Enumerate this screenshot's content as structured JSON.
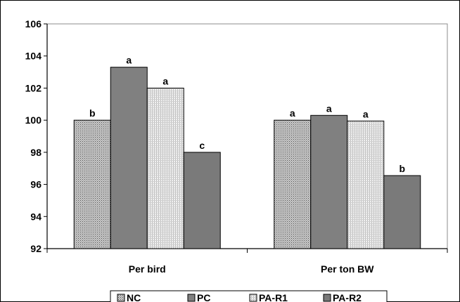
{
  "chart_data": {
    "type": "bar",
    "categories": [
      "Per bird",
      "Per ton BW"
    ],
    "series": [
      {
        "name": "NC",
        "values": [
          100.0,
          100.0
        ],
        "labels": [
          "b",
          "a"
        ],
        "pattern": "dots",
        "color": "#b0b0b0"
      },
      {
        "name": "PC",
        "values": [
          103.3,
          100.3
        ],
        "labels": [
          "a",
          "a"
        ],
        "pattern": "solid",
        "color": "#808080"
      },
      {
        "name": "PA-R1",
        "values": [
          102.0,
          99.95
        ],
        "labels": [
          "a",
          "a"
        ],
        "pattern": "lines",
        "color": "#e0e0e0"
      },
      {
        "name": "PA-R2",
        "values": [
          98.0,
          96.55
        ],
        "labels": [
          "c",
          "b"
        ],
        "pattern": "solid",
        "color": "#7a7a7a"
      }
    ],
    "ylim": [
      92,
      106
    ],
    "yticks": [
      92,
      94,
      96,
      98,
      100,
      102,
      104,
      106
    ],
    "grid": false,
    "legend_position": "bottom"
  }
}
